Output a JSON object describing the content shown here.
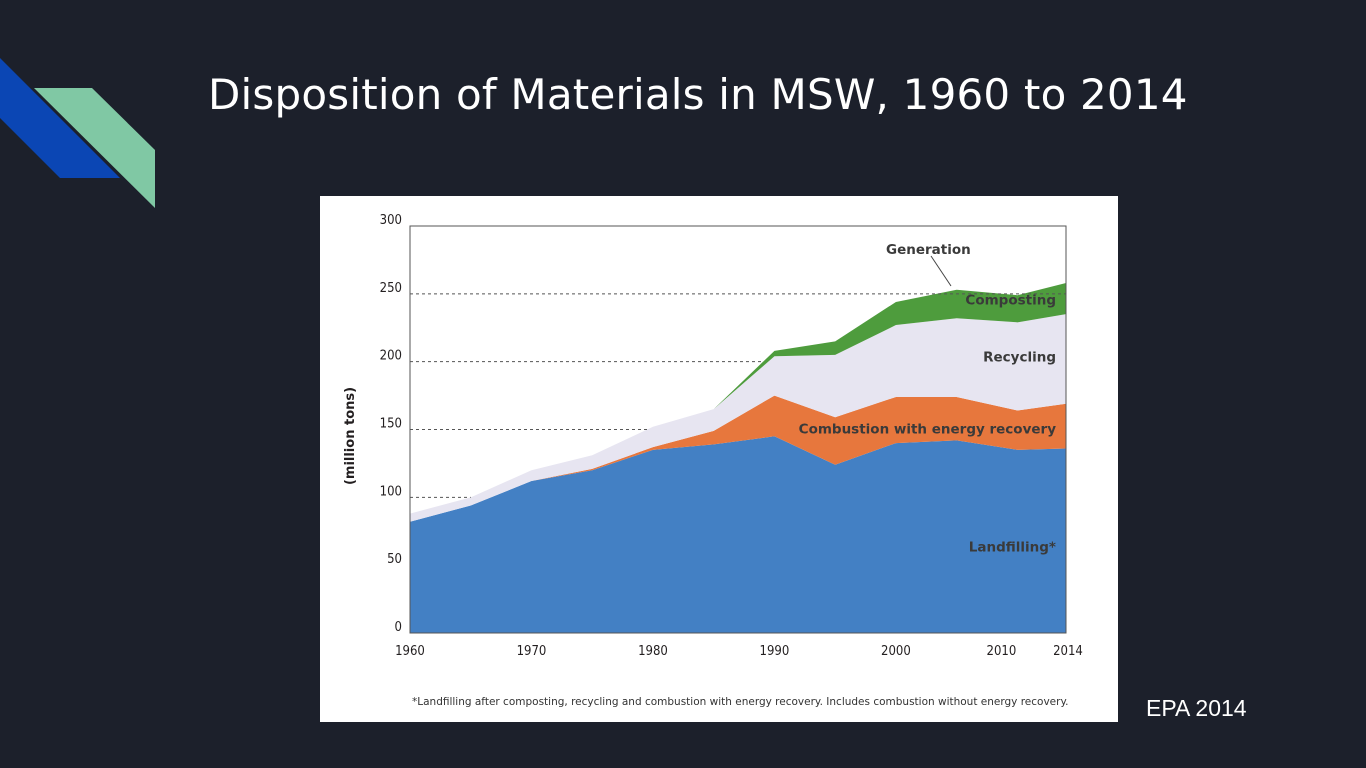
{
  "slide": {
    "title": "Disposition of Materials in MSW, 1960 to 2014",
    "source": "EPA 2014"
  },
  "colors": {
    "background": "#1c202b",
    "accent_blue": "#0b46b4",
    "accent_green": "#80c8a4"
  },
  "chart_data": {
    "type": "area",
    "stacked": true,
    "title": "",
    "xlabel": "",
    "ylabel": "(million tons)",
    "xlim": [
      1960,
      2014
    ],
    "ylim": [
      0,
      300
    ],
    "x_ticks": [
      1960,
      1970,
      1980,
      1990,
      2000,
      2010,
      2014
    ],
    "y_ticks": [
      0,
      50,
      100,
      150,
      200,
      250,
      300
    ],
    "dashed_gridlines": [
      100,
      150,
      200,
      250
    ],
    "x": [
      1960,
      1965,
      1970,
      1975,
      1980,
      1985,
      1990,
      1995,
      2000,
      2005,
      2010,
      2014
    ],
    "series": [
      {
        "name": "Landfilling*",
        "color": "#4380c4",
        "values": [
          82,
          94,
          112,
          120,
          135,
          139,
          145,
          124,
          140,
          142,
          135,
          136
        ]
      },
      {
        "name": "Combustion with energy recovery",
        "color": "#e7773d",
        "values": [
          0,
          0,
          0,
          1,
          2,
          10,
          30,
          35,
          34,
          32,
          29,
          33
        ]
      },
      {
        "name": "Recycling",
        "color": "#e7e5f1",
        "values": [
          6,
          6,
          8,
          10,
          15,
          16,
          29,
          46,
          53,
          58,
          65,
          66
        ]
      },
      {
        "name": "Composting",
        "color": "#4e9c3d",
        "values": [
          0,
          0,
          0,
          0,
          0,
          0,
          4,
          10,
          17,
          21,
          20,
          23
        ]
      }
    ],
    "annotations": [
      {
        "text": "Generation",
        "points_to": 2004
      },
      {
        "text": "*Landfilling after composting, recycling and combustion with energy recovery. Includes combustion without energy recovery."
      }
    ]
  }
}
